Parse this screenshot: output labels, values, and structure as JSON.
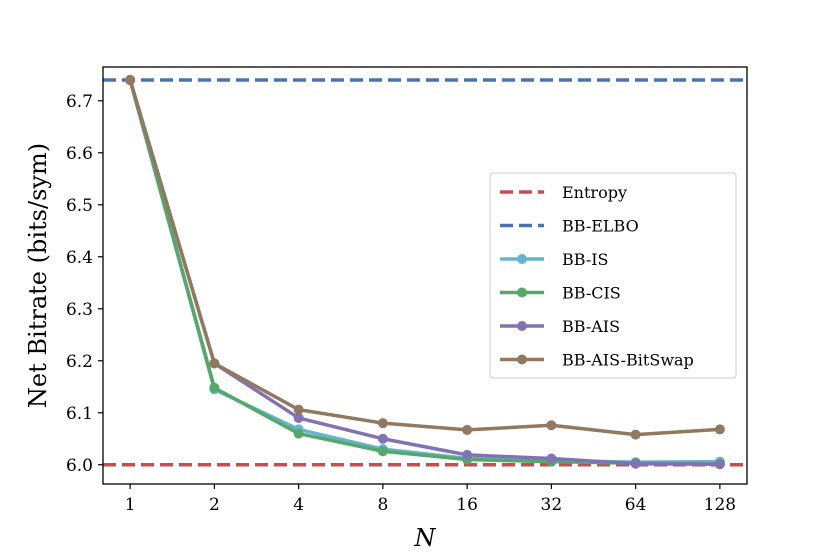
{
  "chart_data": {
    "type": "line",
    "title": "",
    "xlabel": "N",
    "ylabel": "Net Bitrate (bits/sym)",
    "x_scale": "log2",
    "categories": [
      "1",
      "2",
      "4",
      "8",
      "16",
      "32",
      "64",
      "128"
    ],
    "x": [
      1,
      2,
      4,
      8,
      16,
      32,
      64,
      128
    ],
    "xlim": [
      0.8,
      160
    ],
    "ylim": [
      5.963,
      6.765
    ],
    "yticks": [
      "6.0",
      "6.1",
      "6.2",
      "6.3",
      "6.4",
      "6.5",
      "6.6",
      "6.7"
    ],
    "ytick_values": [
      6.0,
      6.1,
      6.2,
      6.3,
      6.4,
      6.5,
      6.6,
      6.7
    ],
    "grid": false,
    "legend_position": "center-right",
    "hlines": [
      {
        "name": "Entropy",
        "value": 6.0,
        "color": "#c44e52",
        "style": "dashed"
      },
      {
        "name": "BB-ELBO",
        "value": 6.74,
        "color": "#4c72b0",
        "style": "dashed"
      }
    ],
    "series": [
      {
        "name": "BB-IS",
        "color": "#64b5cd",
        "values": [
          6.74,
          6.145,
          6.068,
          6.03,
          6.012,
          6.008,
          6.005,
          6.006
        ]
      },
      {
        "name": "BB-CIS",
        "color": "#55a868",
        "values": [
          6.74,
          6.148,
          6.06,
          6.026,
          6.01,
          6.006,
          6.003,
          6.002
        ]
      },
      {
        "name": "BB-AIS",
        "color": "#8172b2",
        "values": [
          6.74,
          6.195,
          6.09,
          6.05,
          6.019,
          6.012,
          6.002,
          6.001
        ]
      },
      {
        "name": "BB-AIS-BitSwap",
        "color": "#937860",
        "values": [
          6.74,
          6.195,
          6.106,
          6.08,
          6.067,
          6.076,
          6.058,
          6.068
        ]
      }
    ]
  }
}
